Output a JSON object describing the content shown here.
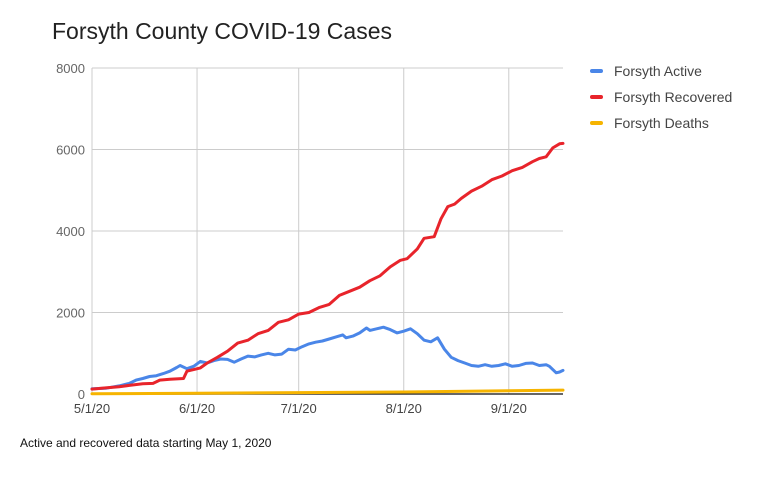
{
  "chart_data": {
    "type": "line",
    "title": "Forsyth County COVID-19 Cases",
    "xlabel": "",
    "ylabel": "",
    "ylim": [
      0,
      8000
    ],
    "yticks": [
      0,
      2000,
      4000,
      6000,
      8000
    ],
    "xlim": [
      "2020-05-01",
      "2020-09-17"
    ],
    "xticks": [
      "2020-05-01",
      "2020-06-01",
      "2020-07-01",
      "2020-08-01",
      "2020-09-01"
    ],
    "xtick_labels": [
      "5/1/20",
      "6/1/20",
      "7/1/20",
      "8/1/20",
      "9/1/20"
    ],
    "grid": true,
    "legend_position": "right",
    "series": [
      {
        "name": "Forsyth Active",
        "color": "#4a86e8",
        "points": [
          [
            "2020-05-01",
            130
          ],
          [
            "2020-05-05",
            140
          ],
          [
            "2020-05-09",
            200
          ],
          [
            "2020-05-12",
            260
          ],
          [
            "2020-05-14",
            340
          ],
          [
            "2020-05-16",
            380
          ],
          [
            "2020-05-18",
            430
          ],
          [
            "2020-05-20",
            450
          ],
          [
            "2020-05-22",
            500
          ],
          [
            "2020-05-24",
            560
          ],
          [
            "2020-05-26",
            650
          ],
          [
            "2020-05-27",
            700
          ],
          [
            "2020-05-29",
            620
          ],
          [
            "2020-05-31",
            680
          ],
          [
            "2020-06-02",
            800
          ],
          [
            "2020-06-04",
            760
          ],
          [
            "2020-06-06",
            820
          ],
          [
            "2020-06-08",
            860
          ],
          [
            "2020-06-10",
            850
          ],
          [
            "2020-06-12",
            780
          ],
          [
            "2020-06-14",
            860
          ],
          [
            "2020-06-16",
            930
          ],
          [
            "2020-06-18",
            910
          ],
          [
            "2020-06-20",
            960
          ],
          [
            "2020-06-22",
            1000
          ],
          [
            "2020-06-24",
            960
          ],
          [
            "2020-06-26",
            980
          ],
          [
            "2020-06-28",
            1100
          ],
          [
            "2020-06-30",
            1080
          ],
          [
            "2020-07-02",
            1160
          ],
          [
            "2020-07-04",
            1230
          ],
          [
            "2020-07-06",
            1270
          ],
          [
            "2020-07-08",
            1300
          ],
          [
            "2020-07-10",
            1350
          ],
          [
            "2020-07-12",
            1400
          ],
          [
            "2020-07-14",
            1450
          ],
          [
            "2020-07-15",
            1380
          ],
          [
            "2020-07-17",
            1420
          ],
          [
            "2020-07-19",
            1500
          ],
          [
            "2020-07-21",
            1620
          ],
          [
            "2020-07-22",
            1560
          ],
          [
            "2020-07-24",
            1600
          ],
          [
            "2020-07-26",
            1640
          ],
          [
            "2020-07-28",
            1580
          ],
          [
            "2020-07-30",
            1500
          ],
          [
            "2020-08-01",
            1540
          ],
          [
            "2020-08-03",
            1600
          ],
          [
            "2020-08-05",
            1480
          ],
          [
            "2020-08-07",
            1320
          ],
          [
            "2020-08-09",
            1280
          ],
          [
            "2020-08-11",
            1380
          ],
          [
            "2020-08-13",
            1100
          ],
          [
            "2020-08-15",
            900
          ],
          [
            "2020-08-17",
            820
          ],
          [
            "2020-08-19",
            760
          ],
          [
            "2020-08-21",
            700
          ],
          [
            "2020-08-23",
            680
          ],
          [
            "2020-08-25",
            720
          ],
          [
            "2020-08-27",
            680
          ],
          [
            "2020-08-29",
            700
          ],
          [
            "2020-08-31",
            740
          ],
          [
            "2020-09-02",
            680
          ],
          [
            "2020-09-04",
            700
          ],
          [
            "2020-09-06",
            750
          ],
          [
            "2020-09-08",
            760
          ],
          [
            "2020-09-10",
            700
          ],
          [
            "2020-09-12",
            720
          ],
          [
            "2020-09-13",
            680
          ],
          [
            "2020-09-15",
            520
          ],
          [
            "2020-09-16",
            540
          ],
          [
            "2020-09-17",
            580
          ]
        ]
      },
      {
        "name": "Forsyth Recovered",
        "color": "#e8242b",
        "points": [
          [
            "2020-05-01",
            120
          ],
          [
            "2020-05-05",
            150
          ],
          [
            "2020-05-09",
            180
          ],
          [
            "2020-05-12",
            210
          ],
          [
            "2020-05-16",
            250
          ],
          [
            "2020-05-19",
            260
          ],
          [
            "2020-05-21",
            340
          ],
          [
            "2020-05-24",
            360
          ],
          [
            "2020-05-28",
            380
          ],
          [
            "2020-05-29",
            560
          ],
          [
            "2020-06-02",
            640
          ],
          [
            "2020-06-04",
            760
          ],
          [
            "2020-06-07",
            900
          ],
          [
            "2020-06-10",
            1050
          ],
          [
            "2020-06-13",
            1250
          ],
          [
            "2020-06-16",
            1320
          ],
          [
            "2020-06-19",
            1480
          ],
          [
            "2020-06-22",
            1560
          ],
          [
            "2020-06-25",
            1760
          ],
          [
            "2020-06-28",
            1820
          ],
          [
            "2020-07-01",
            1960
          ],
          [
            "2020-07-04",
            2000
          ],
          [
            "2020-07-07",
            2120
          ],
          [
            "2020-07-10",
            2200
          ],
          [
            "2020-07-13",
            2420
          ],
          [
            "2020-07-16",
            2520
          ],
          [
            "2020-07-19",
            2620
          ],
          [
            "2020-07-22",
            2780
          ],
          [
            "2020-07-25",
            2900
          ],
          [
            "2020-07-28",
            3120
          ],
          [
            "2020-07-31",
            3280
          ],
          [
            "2020-08-02",
            3320
          ],
          [
            "2020-08-05",
            3560
          ],
          [
            "2020-08-07",
            3820
          ],
          [
            "2020-08-10",
            3860
          ],
          [
            "2020-08-12",
            4300
          ],
          [
            "2020-08-14",
            4600
          ],
          [
            "2020-08-16",
            4660
          ],
          [
            "2020-08-18",
            4800
          ],
          [
            "2020-08-21",
            4980
          ],
          [
            "2020-08-24",
            5100
          ],
          [
            "2020-08-27",
            5260
          ],
          [
            "2020-08-30",
            5350
          ],
          [
            "2020-09-02",
            5480
          ],
          [
            "2020-09-05",
            5560
          ],
          [
            "2020-09-08",
            5700
          ],
          [
            "2020-09-10",
            5780
          ],
          [
            "2020-09-12",
            5820
          ],
          [
            "2020-09-14",
            6040
          ],
          [
            "2020-09-16",
            6140
          ],
          [
            "2020-09-17",
            6150
          ]
        ]
      },
      {
        "name": "Forsyth Deaths",
        "color": "#f6b400",
        "points": [
          [
            "2020-05-01",
            5
          ],
          [
            "2020-06-01",
            20
          ],
          [
            "2020-07-01",
            35
          ],
          [
            "2020-08-01",
            50
          ],
          [
            "2020-09-01",
            80
          ],
          [
            "2020-09-17",
            95
          ]
        ]
      }
    ]
  },
  "caption": "Active and recovered data starting May 1, 2020"
}
